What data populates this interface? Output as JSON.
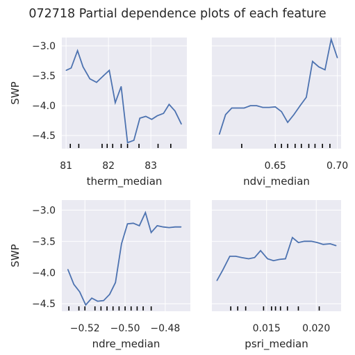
{
  "title": "072718 Partial dependence plots of each feature",
  "colors": {
    "line": "#4c72b0",
    "panel": "#eaeaf2",
    "grid": "#ffffff",
    "text": "#262626",
    "rug": "#000000"
  },
  "chart_data": [
    {
      "type": "line",
      "xlabel": "therm_median",
      "ylabel": "SWP",
      "xlim": [
        80.9,
        83.85
      ],
      "ylim": [
        -4.72,
        -2.86
      ],
      "xticks": [
        81,
        82,
        83
      ],
      "xtick_labels": [
        "81",
        "82",
        "83"
      ],
      "yticks": [
        -3.0,
        -3.5,
        -4.0,
        -4.5
      ],
      "ytick_labels": [
        "−3.0",
        "−3.5",
        "−4.0",
        "−4.5"
      ],
      "x": [
        81.0,
        81.12,
        81.27,
        81.4,
        81.56,
        81.72,
        81.88,
        82.02,
        82.16,
        82.3,
        82.45,
        82.6,
        82.74,
        82.88,
        83.02,
        83.15,
        83.3,
        83.43,
        83.57,
        83.72
      ],
      "y": [
        -3.41,
        -3.37,
        -3.08,
        -3.35,
        -3.55,
        -3.61,
        -3.5,
        -3.41,
        -3.95,
        -3.68,
        -4.62,
        -4.58,
        -4.21,
        -4.18,
        -4.23,
        -4.17,
        -4.13,
        -3.98,
        -4.09,
        -4.31
      ],
      "rug": [
        81.1,
        81.3,
        81.85,
        81.97,
        82.1,
        82.3,
        82.45,
        82.72,
        83.17,
        83.47
      ]
    },
    {
      "type": "line",
      "xlabel": "ndvi_median",
      "ylabel": "",
      "xlim": [
        0.599,
        0.703
      ],
      "ylim": [
        -4.72,
        -2.86
      ],
      "xticks": [
        0.65,
        0.7
      ],
      "xtick_labels": [
        "0.65",
        "0.70"
      ],
      "yticks": [
        -3.0,
        -3.5,
        -4.0,
        -4.5
      ],
      "ytick_labels": [],
      "x": [
        0.605,
        0.61,
        0.615,
        0.62,
        0.625,
        0.63,
        0.635,
        0.64,
        0.645,
        0.65,
        0.655,
        0.66,
        0.665,
        0.67,
        0.675,
        0.68,
        0.685,
        0.69,
        0.695,
        0.7
      ],
      "y": [
        -4.48,
        -4.15,
        -4.04,
        -4.04,
        -4.04,
        -4.0,
        -4.0,
        -4.03,
        -4.03,
        -4.02,
        -4.1,
        -4.28,
        -4.15,
        -4.0,
        -3.86,
        -3.26,
        -3.35,
        -3.4,
        -2.89,
        -3.2
      ],
      "rug": [
        0.623,
        0.65,
        0.655,
        0.66,
        0.666,
        0.671,
        0.677,
        0.682,
        0.688,
        0.694
      ]
    },
    {
      "type": "line",
      "xlabel": "ndre_median",
      "ylabel": "SWP",
      "xlim": [
        -0.5315,
        -0.4675
      ],
      "ylim": [
        -4.62,
        -2.84
      ],
      "xticks": [
        -0.52,
        -0.5,
        -0.48
      ],
      "xtick_labels": [
        "−0.52",
        "−0.50",
        "−0.48"
      ],
      "yticks": [
        -3.0,
        -3.5,
        -4.0,
        -4.5
      ],
      "ytick_labels": [
        "−3.0",
        "−3.5",
        "−4.0",
        "−4.5"
      ],
      "x": [
        -0.5285,
        -0.5255,
        -0.5226,
        -0.5196,
        -0.5166,
        -0.5137,
        -0.5107,
        -0.5077,
        -0.5048,
        -0.5018,
        -0.4988,
        -0.4959,
        -0.4929,
        -0.4899,
        -0.487,
        -0.484,
        -0.481,
        -0.4781,
        -0.4751,
        -0.4721
      ],
      "y": [
        -3.95,
        -4.19,
        -4.31,
        -4.52,
        -4.41,
        -4.46,
        -4.45,
        -4.35,
        -4.16,
        -3.54,
        -3.22,
        -3.21,
        -3.25,
        -3.04,
        -3.36,
        -3.25,
        -3.27,
        -3.28,
        -3.27,
        -3.27
      ],
      "rug": [
        -0.528,
        -0.523,
        -0.52,
        -0.515,
        -0.512,
        -0.509,
        -0.506,
        -0.503,
        -0.5,
        -0.497,
        -0.494,
        -0.491,
        -0.487
      ]
    },
    {
      "type": "line",
      "xlabel": "psri_median",
      "ylabel": "",
      "xlim": [
        0.0095,
        0.0225
      ],
      "ylim": [
        -4.62,
        -2.84
      ],
      "xticks": [
        0.015,
        0.02
      ],
      "xtick_labels": [
        "0.015",
        "0.020"
      ],
      "yticks": [
        -3.0,
        -3.5,
        -4.0,
        -4.5
      ],
      "ytick_labels": [],
      "x": [
        0.01,
        0.0106,
        0.0113,
        0.0119,
        0.0125,
        0.0132,
        0.0138,
        0.0144,
        0.0151,
        0.0157,
        0.0163,
        0.0169,
        0.0176,
        0.0182,
        0.0188,
        0.0195,
        0.0201,
        0.0207,
        0.0214,
        0.022
      ],
      "y": [
        -4.13,
        -3.96,
        -3.74,
        -3.74,
        -3.76,
        -3.78,
        -3.76,
        -3.65,
        -3.78,
        -3.81,
        -3.79,
        -3.78,
        -3.44,
        -3.52,
        -3.5,
        -3.5,
        -3.52,
        -3.55,
        -3.54,
        -3.57
      ],
      "rug": [
        0.0114,
        0.0121,
        0.0129,
        0.0147,
        0.0155,
        0.0159,
        0.0164,
        0.0171,
        0.0182,
        0.0203
      ]
    }
  ]
}
